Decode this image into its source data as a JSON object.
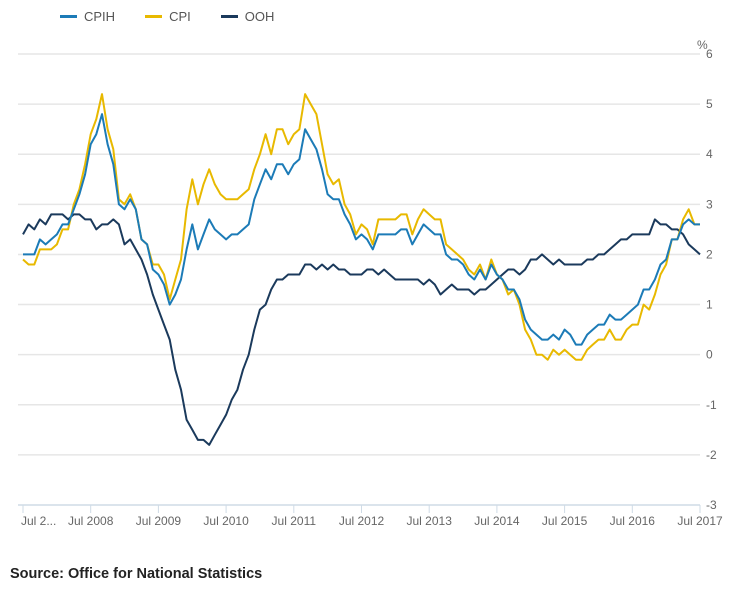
{
  "chart_data": {
    "type": "line",
    "title": "",
    "xlabel": "",
    "ylabel": "%",
    "ylim": [
      -3,
      6
    ],
    "y_ticks": [
      "6",
      "5",
      "4",
      "3",
      "2",
      "1",
      "0",
      "-1",
      "-2",
      "-3"
    ],
    "x_start": "Jul 2007",
    "x_end": "Jul 2017",
    "x_frequency": "monthly",
    "x_tick_labels": [
      "Jul 2...",
      "Jul 2008",
      "Jul 2009",
      "Jul 2010",
      "Jul 2011",
      "Jul 2012",
      "Jul 2013",
      "Jul 2014",
      "Jul 2015",
      "Jul 2016",
      "Jul 2017"
    ],
    "grid": true,
    "legend_position": "top-left",
    "series": [
      {
        "name": "CPIH",
        "color": "#1c7bb7",
        "values": [
          2.0,
          2.0,
          2.0,
          2.3,
          2.2,
          2.3,
          2.4,
          2.6,
          2.6,
          2.9,
          3.2,
          3.6,
          4.2,
          4.4,
          4.8,
          4.2,
          3.8,
          3.0,
          2.9,
          3.1,
          2.9,
          2.3,
          2.2,
          1.7,
          1.6,
          1.4,
          1.0,
          1.2,
          1.5,
          2.1,
          2.6,
          2.1,
          2.4,
          2.7,
          2.5,
          2.4,
          2.3,
          2.4,
          2.4,
          2.5,
          2.6,
          3.1,
          3.4,
          3.7,
          3.5,
          3.8,
          3.8,
          3.6,
          3.8,
          3.9,
          4.5,
          4.3,
          4.1,
          3.7,
          3.2,
          3.1,
          3.1,
          2.8,
          2.6,
          2.3,
          2.4,
          2.3,
          2.1,
          2.4,
          2.4,
          2.4,
          2.4,
          2.5,
          2.5,
          2.2,
          2.4,
          2.6,
          2.5,
          2.4,
          2.4,
          2.0,
          1.9,
          1.9,
          1.8,
          1.6,
          1.5,
          1.7,
          1.5,
          1.8,
          1.6,
          1.5,
          1.3,
          1.3,
          1.1,
          0.7,
          0.5,
          0.4,
          0.3,
          0.3,
          0.4,
          0.3,
          0.5,
          0.4,
          0.2,
          0.2,
          0.4,
          0.5,
          0.6,
          0.6,
          0.8,
          0.7,
          0.7,
          0.8,
          0.9,
          1.0,
          1.3,
          1.3,
          1.5,
          1.8,
          1.9,
          2.3,
          2.3,
          2.6,
          2.7,
          2.6,
          2.6
        ]
      },
      {
        "name": "CPI",
        "color": "#e8b900",
        "values": [
          1.9,
          1.8,
          1.8,
          2.1,
          2.1,
          2.1,
          2.2,
          2.5,
          2.5,
          3.0,
          3.3,
          3.8,
          4.4,
          4.7,
          5.2,
          4.5,
          4.1,
          3.1,
          3.0,
          3.2,
          2.9,
          2.3,
          2.2,
          1.8,
          1.8,
          1.6,
          1.1,
          1.5,
          1.9,
          2.9,
          3.5,
          3.0,
          3.4,
          3.7,
          3.4,
          3.2,
          3.1,
          3.1,
          3.1,
          3.2,
          3.3,
          3.7,
          4.0,
          4.4,
          4.0,
          4.5,
          4.5,
          4.2,
          4.4,
          4.5,
          5.2,
          5.0,
          4.8,
          4.2,
          3.6,
          3.4,
          3.5,
          3.0,
          2.8,
          2.4,
          2.6,
          2.5,
          2.2,
          2.7,
          2.7,
          2.7,
          2.7,
          2.8,
          2.8,
          2.4,
          2.7,
          2.9,
          2.8,
          2.7,
          2.7,
          2.2,
          2.1,
          2.0,
          1.9,
          1.7,
          1.6,
          1.8,
          1.5,
          1.9,
          1.6,
          1.5,
          1.2,
          1.3,
          1.0,
          0.5,
          0.3,
          0.0,
          0.0,
          -0.1,
          0.1,
          0.0,
          0.1,
          0.0,
          -0.1,
          -0.1,
          0.1,
          0.2,
          0.3,
          0.3,
          0.5,
          0.3,
          0.3,
          0.5,
          0.6,
          0.6,
          1.0,
          0.9,
          1.2,
          1.6,
          1.8,
          2.3,
          2.3,
          2.7,
          2.9,
          2.6,
          2.6
        ]
      },
      {
        "name": "OOH",
        "color": "#1b3a5c",
        "values": [
          2.4,
          2.6,
          2.5,
          2.7,
          2.6,
          2.8,
          2.8,
          2.8,
          2.7,
          2.8,
          2.8,
          2.7,
          2.7,
          2.5,
          2.6,
          2.6,
          2.7,
          2.6,
          2.2,
          2.3,
          2.1,
          1.9,
          1.6,
          1.2,
          0.9,
          0.6,
          0.3,
          -0.3,
          -0.7,
          -1.3,
          -1.5,
          -1.7,
          -1.7,
          -1.8,
          -1.6,
          -1.4,
          -1.2,
          -0.9,
          -0.7,
          -0.3,
          0.0,
          0.5,
          0.9,
          1.0,
          1.3,
          1.5,
          1.5,
          1.6,
          1.6,
          1.6,
          1.8,
          1.8,
          1.7,
          1.8,
          1.7,
          1.8,
          1.7,
          1.7,
          1.6,
          1.6,
          1.6,
          1.7,
          1.7,
          1.6,
          1.7,
          1.6,
          1.5,
          1.5,
          1.5,
          1.5,
          1.5,
          1.4,
          1.5,
          1.4,
          1.2,
          1.3,
          1.4,
          1.3,
          1.3,
          1.3,
          1.2,
          1.3,
          1.3,
          1.4,
          1.5,
          1.6,
          1.7,
          1.7,
          1.6,
          1.7,
          1.9,
          1.9,
          2.0,
          1.9,
          1.8,
          1.9,
          1.8,
          1.8,
          1.8,
          1.8,
          1.9,
          1.9,
          2.0,
          2.0,
          2.1,
          2.2,
          2.3,
          2.3,
          2.4,
          2.4,
          2.4,
          2.4,
          2.7,
          2.6,
          2.6,
          2.5,
          2.5,
          2.4,
          2.2,
          2.1,
          2.0
        ]
      }
    ]
  },
  "source": "Source: Office for National Statistics"
}
